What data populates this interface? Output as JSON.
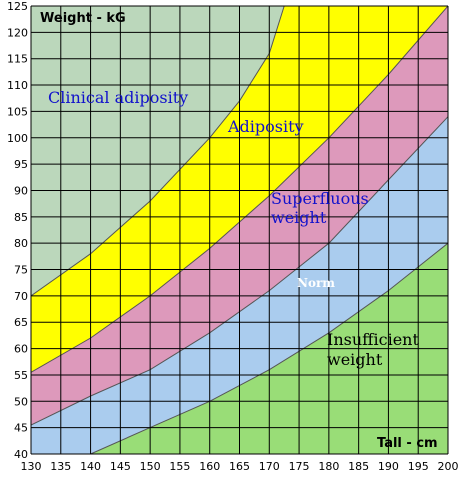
{
  "chart_data": {
    "type": "area",
    "title": "",
    "ylabel": "Weight - kG",
    "xlabel": "Tall - cm",
    "xlim": [
      130,
      200
    ],
    "ylim": [
      40,
      125
    ],
    "x_ticks": [
      130,
      135,
      140,
      145,
      150,
      155,
      160,
      165,
      170,
      175,
      180,
      185,
      190,
      195,
      200
    ],
    "y_ticks": [
      40,
      45,
      50,
      55,
      60,
      65,
      70,
      75,
      80,
      85,
      90,
      95,
      100,
      105,
      110,
      115,
      120,
      125
    ],
    "grid": true,
    "boundaries": [
      {
        "name": "insufficient-norm",
        "points": [
          [
            140,
            40
          ],
          [
            150,
            45
          ],
          [
            160,
            50
          ],
          [
            170,
            56
          ],
          [
            180,
            63
          ],
          [
            190,
            71
          ],
          [
            200,
            80
          ]
        ]
      },
      {
        "name": "norm-superfluous",
        "points": [
          [
            130,
            45.5
          ],
          [
            140,
            51
          ],
          [
            150,
            56
          ],
          [
            160,
            63
          ],
          [
            170,
            71
          ],
          [
            180,
            80
          ],
          [
            190,
            92
          ],
          [
            200,
            104
          ]
        ]
      },
      {
        "name": "superfluous-adiposity",
        "points": [
          [
            130,
            55.5
          ],
          [
            140,
            62
          ],
          [
            150,
            70
          ],
          [
            160,
            79
          ],
          [
            170,
            89
          ],
          [
            180,
            100
          ],
          [
            190,
            112
          ],
          [
            200,
            125
          ]
        ]
      },
      {
        "name": "adiposity-clinical",
        "points": [
          [
            130,
            70
          ],
          [
            140,
            78
          ],
          [
            150,
            88
          ],
          [
            160,
            100
          ],
          [
            165,
            107
          ],
          [
            170,
            116
          ],
          [
            172.5,
            125
          ]
        ]
      }
    ],
    "zones": [
      {
        "label": "Insufficient\nweight",
        "fill": "#99dd77",
        "text_color": "#000000"
      },
      {
        "label": "Norm",
        "fill": "#aaccee",
        "text_color": "#ffffff"
      },
      {
        "label": "Superfluous\nweight",
        "fill": "#dd99bb",
        "text_color": "#1111cc"
      },
      {
        "label": "Adiposity",
        "fill": "#ffff00",
        "text_color": "#1111cc"
      },
      {
        "label": "Clinical adiposity",
        "fill": "#bbd7bb",
        "text_color": "#1111cc"
      }
    ]
  }
}
